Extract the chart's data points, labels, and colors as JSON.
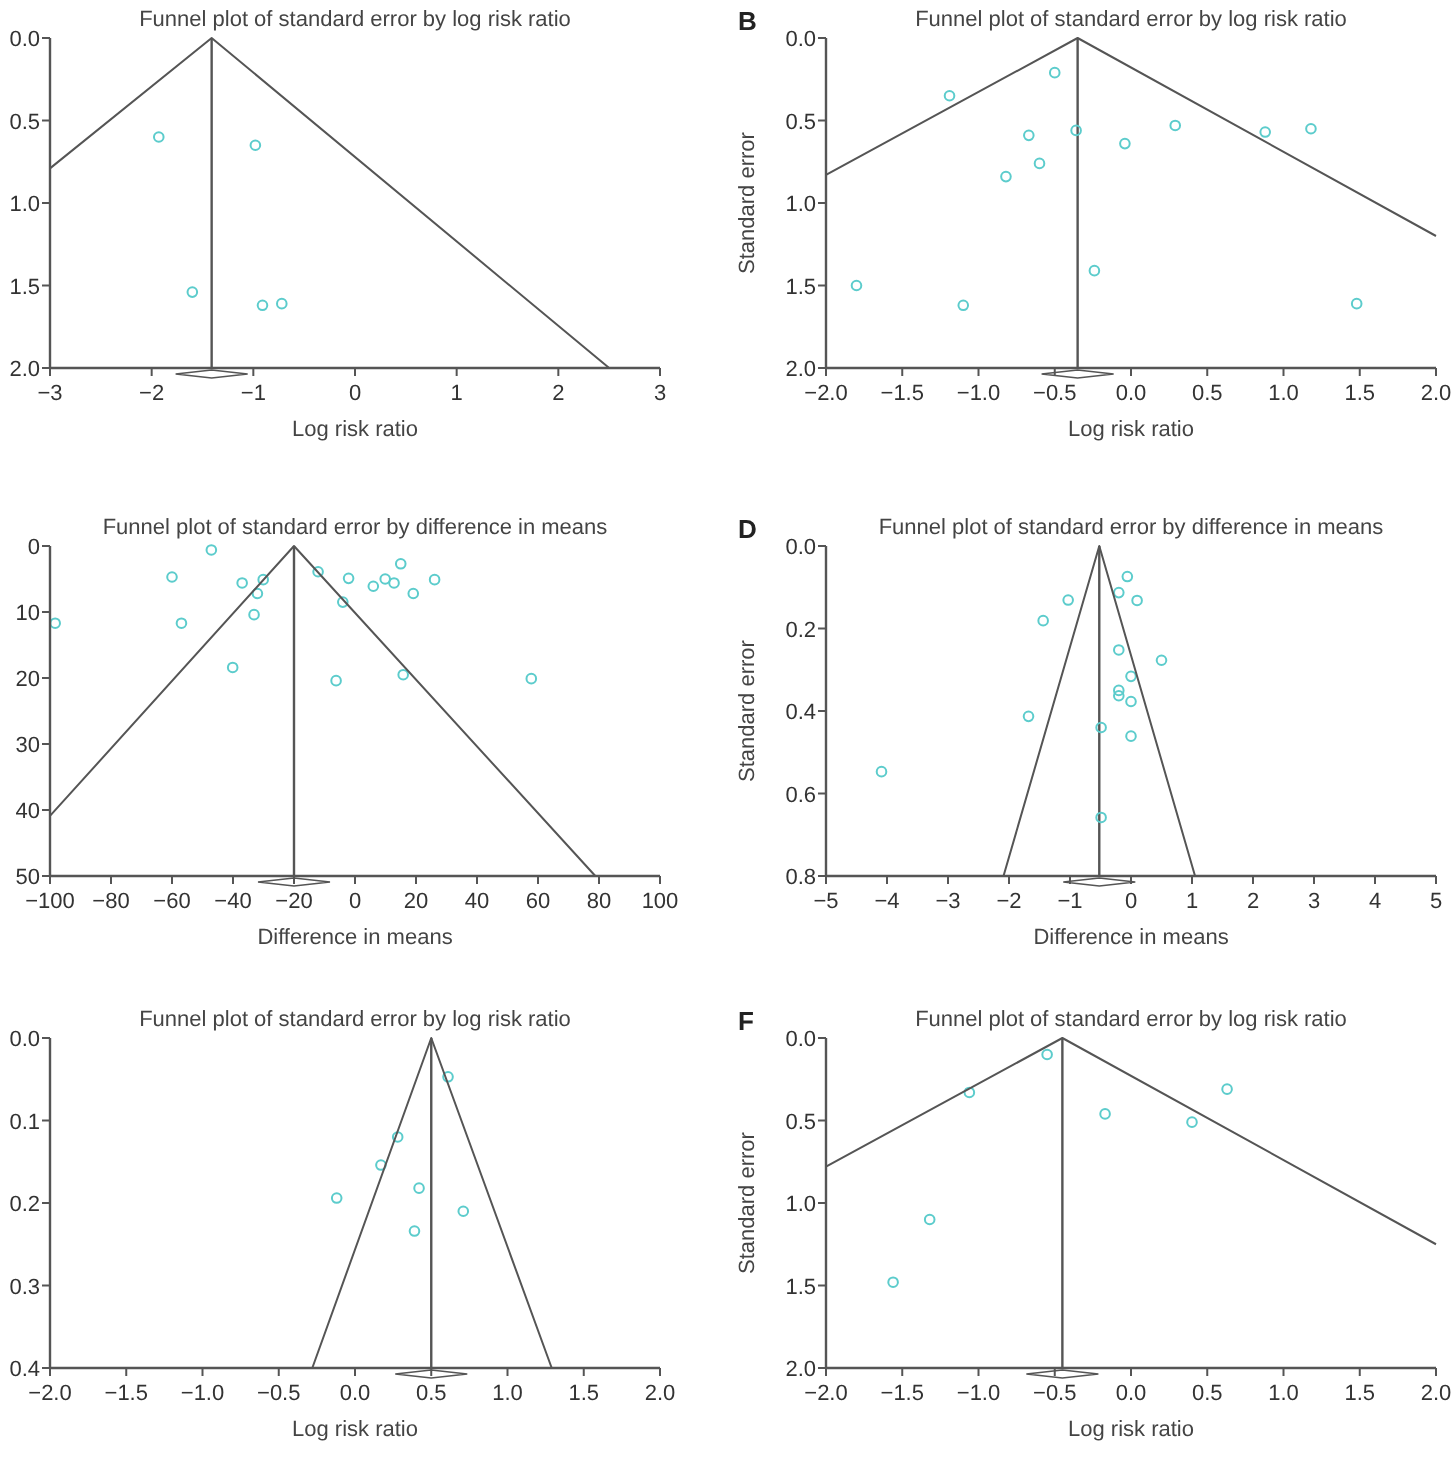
{
  "chart_data": [
    {
      "type": "scatter",
      "title": "Funnel plot of standard error by log risk ratio",
      "xlabel": "Log risk ratio",
      "xlim": [
        -3,
        3
      ],
      "xticks": [
        {
          "value": -3,
          "label": "−3"
        },
        {
          "value": -2,
          "label": "−2"
        },
        {
          "value": -1,
          "label": "−1"
        },
        0,
        1,
        2,
        3
      ],
      "ylim": [
        2,
        0
      ],
      "yticks": [
        {
          "value": 0,
          "label": "0.0"
        },
        {
          "value": 0.5,
          "label": "0.5"
        },
        {
          "value": 1,
          "label": "1.0"
        },
        {
          "value": 1.5,
          "label": "1.5"
        },
        {
          "value": 2,
          "label": "2.0"
        }
      ],
      "ref_lines": [
        {
          "axis": "x",
          "value": -1.41,
          "color": "#555555"
        }
      ],
      "series": [
        {
          "type": "scatter",
          "marker": "circle",
          "color": "#5ccccc",
          "x": [
            -1.93,
            -0.98,
            -1.6,
            -0.91,
            -0.72
          ],
          "values": [
            0.6,
            0.65,
            1.54,
            1.62,
            1.61
          ]
        },
        {
          "type": "line",
          "color": "#555555",
          "x": [
            -3,
            -1.41,
            2.5
          ],
          "values": [
            0.79,
            0,
            2
          ]
        }
      ]
    },
    {
      "type": "scatter",
      "title": "Funnel plot of standard error by log risk ratio",
      "xlabel": "Log risk ratio",
      "ylabel": "Standard error",
      "annotations": [
        "B"
      ],
      "xlim": [
        -2,
        2
      ],
      "xticks": [
        {
          "value": -2,
          "label": "−2.0"
        },
        {
          "value": -1.5,
          "label": "−1.5"
        },
        {
          "value": -1,
          "label": "−1.0"
        },
        {
          "value": -0.5,
          "label": "−0.5"
        },
        {
          "value": 0,
          "label": "0.0"
        },
        {
          "value": 0.5,
          "label": "0.5"
        },
        {
          "value": 1,
          "label": "1.0"
        },
        {
          "value": 1.5,
          "label": "1.5"
        },
        {
          "value": 2,
          "label": "2.0"
        }
      ],
      "ylim": [
        2,
        0
      ],
      "yticks": [
        {
          "value": 0,
          "label": "0.0"
        },
        {
          "value": 0.5,
          "label": "0.5"
        },
        {
          "value": 1,
          "label": "1.0"
        },
        {
          "value": 1.5,
          "label": "1.5"
        },
        {
          "value": 2,
          "label": "2.0"
        }
      ],
      "ref_lines": [
        {
          "axis": "x",
          "value": -0.35,
          "color": "#555555"
        }
      ],
      "series": [
        {
          "type": "scatter",
          "marker": "circle",
          "color": "#5ccccc",
          "x": [
            -1.8,
            -1.19,
            -0.5,
            -0.67,
            -0.6,
            -0.82,
            -0.36,
            -0.04,
            0.29,
            0.88,
            1.18,
            -0.24,
            -1.1,
            1.48
          ],
          "values": [
            1.5,
            0.35,
            0.21,
            0.59,
            0.76,
            0.84,
            0.56,
            0.64,
            0.53,
            0.57,
            0.55,
            1.41,
            1.62,
            1.61
          ]
        },
        {
          "type": "line",
          "color": "#555555",
          "x": [
            -2,
            -0.35,
            2
          ],
          "values": [
            0.83,
            0,
            1.2
          ]
        }
      ]
    },
    {
      "type": "scatter",
      "title": "Funnel plot of standard error by difference in means",
      "xlabel": "Difference in means",
      "xlim": [
        -100,
        100
      ],
      "xticks": [
        {
          "value": -100,
          "label": "−100"
        },
        {
          "value": -80,
          "label": "−80"
        },
        {
          "value": -60,
          "label": "−60"
        },
        {
          "value": -40,
          "label": "−40"
        },
        {
          "value": -20,
          "label": "−20"
        },
        0,
        20,
        40,
        60,
        80,
        100
      ],
      "ylim": [
        50,
        0
      ],
      "yticks": [
        0,
        10,
        20,
        30,
        40,
        50
      ],
      "ref_lines": [
        {
          "axis": "x",
          "value": -20,
          "color": "#555555"
        }
      ],
      "series": [
        {
          "type": "scatter",
          "marker": "circle",
          "color": "#5ccccc",
          "x": [
            -47.1,
            -60,
            -98.3,
            -56.9,
            -37,
            -30.1,
            -32,
            -33.1,
            -40.1,
            -12.1,
            -2.1,
            -4,
            6,
            9.9,
            12.8,
            15,
            19.1,
            26.1,
            -6.2,
            15.8,
            57.8
          ],
          "values": [
            0.6,
            4.7,
            11.7,
            11.7,
            5.6,
            5.1,
            7.2,
            10.4,
            18.4,
            3.9,
            4.9,
            8.5,
            6.1,
            5,
            5.6,
            2.7,
            7.2,
            5.1,
            20.4,
            19.5,
            20.1
          ]
        },
        {
          "type": "line",
          "color": "#555555",
          "x": [
            -100,
            -20,
            78.8
          ],
          "values": [
            40.9,
            0,
            50
          ]
        }
      ]
    },
    {
      "type": "scatter",
      "title": "Funnel plot of standard error by difference in means",
      "xlabel": "Difference in means",
      "ylabel": "Standard error",
      "annotations": [
        "D"
      ],
      "xlim": [
        -5,
        5
      ],
      "xticks": [
        {
          "value": -5,
          "label": "−5"
        },
        {
          "value": -4,
          "label": "−4"
        },
        {
          "value": -3,
          "label": "−3"
        },
        {
          "value": -2,
          "label": "−2"
        },
        {
          "value": -1,
          "label": "−1"
        },
        0,
        1,
        2,
        3,
        4,
        5
      ],
      "ylim": [
        0.8,
        0
      ],
      "yticks": [
        {
          "value": 0,
          "label": "0.0"
        },
        0.2,
        0.4,
        0.6,
        0.8
      ],
      "ref_lines": [
        {
          "axis": "x",
          "value": -0.52,
          "color": "#555555"
        }
      ],
      "series": [
        {
          "type": "scatter",
          "marker": "circle",
          "color": "#5ccccc",
          "x": [
            -0.06,
            -0.2,
            0.1,
            -1.03,
            -1.44,
            -0.2,
            0.5,
            0,
            -0.2,
            -0.2,
            0,
            -1.68,
            -0.49,
            0,
            -4.09,
            -0.49
          ],
          "values": [
            0.074,
            0.113,
            0.132,
            0.131,
            0.181,
            0.252,
            0.277,
            0.316,
            0.35,
            0.363,
            0.377,
            0.413,
            0.44,
            0.461,
            0.547,
            0.658
          ]
        },
        {
          "type": "line",
          "color": "#555555",
          "x": [
            -2.09,
            -0.52,
            1.05
          ],
          "values": [
            0.8,
            0,
            0.8
          ]
        }
      ]
    },
    {
      "type": "scatter",
      "title": "Funnel plot of standard error by log risk ratio",
      "xlabel": "Log risk ratio",
      "xlim": [
        -2,
        2
      ],
      "xticks": [
        {
          "value": -2,
          "label": "−2.0"
        },
        {
          "value": -1.5,
          "label": "−1.5"
        },
        {
          "value": -1,
          "label": "−1.0"
        },
        {
          "value": -0.5,
          "label": "−0.5"
        },
        {
          "value": 0,
          "label": "0.0"
        },
        {
          "value": 0.5,
          "label": "0.5"
        },
        {
          "value": 1,
          "label": "1.0"
        },
        {
          "value": 1.5,
          "label": "1.5"
        },
        {
          "value": 2,
          "label": "2.0"
        }
      ],
      "ylim": [
        0.4,
        0
      ],
      "yticks": [
        {
          "value": 0,
          "label": "0.0"
        },
        0.1,
        0.2,
        0.3,
        0.4
      ],
      "ref_lines": [
        {
          "axis": "x",
          "value": 0.5,
          "color": "#555555"
        }
      ],
      "series": [
        {
          "type": "scatter",
          "marker": "circle",
          "color": "#5ccccc",
          "x": [
            0.61,
            0.28,
            0.17,
            0.42,
            -0.12,
            0.71,
            0.39
          ],
          "values": [
            0.047,
            0.12,
            0.154,
            0.182,
            0.194,
            0.21,
            0.234
          ]
        },
        {
          "type": "line",
          "color": "#555555",
          "x": [
            -0.28,
            0.5,
            1.29
          ],
          "values": [
            0.4,
            0,
            0.4
          ]
        }
      ]
    },
    {
      "type": "scatter",
      "title": "Funnel plot of standard error by log risk ratio",
      "xlabel": "Log risk ratio",
      "ylabel": "Standard error",
      "annotations": [
        "F"
      ],
      "xlim": [
        -2,
        2
      ],
      "xticks": [
        {
          "value": -2,
          "label": "−2.0"
        },
        {
          "value": -1.5,
          "label": "−1.5"
        },
        {
          "value": -1,
          "label": "−1.0"
        },
        {
          "value": -0.5,
          "label": "−0.5"
        },
        {
          "value": 0,
          "label": "0.0"
        },
        {
          "value": 0.5,
          "label": "0.5"
        },
        {
          "value": 1,
          "label": "1.0"
        },
        {
          "value": 1.5,
          "label": "1.5"
        },
        {
          "value": 2,
          "label": "2.0"
        }
      ],
      "ylim": [
        2,
        0
      ],
      "yticks": [
        {
          "value": 0,
          "label": "0.0"
        },
        {
          "value": 0.5,
          "label": "0.5"
        },
        {
          "value": 1,
          "label": "1.0"
        },
        {
          "value": 1.5,
          "label": "1.5"
        },
        {
          "value": 2,
          "label": "2.0"
        }
      ],
      "ref_lines": [
        {
          "axis": "x",
          "value": -0.45,
          "color": "#555555"
        }
      ],
      "series": [
        {
          "type": "scatter",
          "marker": "circle",
          "color": "#5ccccc",
          "x": [
            -0.55,
            -1.06,
            -1.32,
            -1.56,
            -0.17,
            0.4,
            0.63
          ],
          "values": [
            0.1,
            0.33,
            1.1,
            1.48,
            0.46,
            0.51,
            0.31
          ]
        },
        {
          "type": "line",
          "color": "#555555",
          "x": [
            -2,
            -0.45,
            2
          ],
          "values": [
            0.78,
            0,
            1.25
          ]
        }
      ]
    }
  ]
}
